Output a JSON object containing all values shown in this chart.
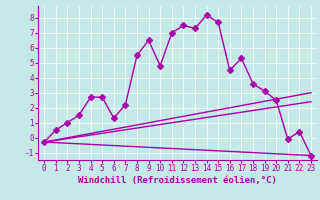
{
  "title": "",
  "xlabel": "Windchill (Refroidissement éolien,°C)",
  "ylabel": "",
  "xlim": [
    -0.5,
    23.5
  ],
  "ylim": [
    -1.5,
    8.8
  ],
  "yticks": [
    -1,
    0,
    1,
    2,
    3,
    4,
    5,
    6,
    7,
    8
  ],
  "xticks": [
    0,
    1,
    2,
    3,
    4,
    5,
    6,
    7,
    8,
    9,
    10,
    11,
    12,
    13,
    14,
    15,
    16,
    17,
    18,
    19,
    20,
    21,
    22,
    23
  ],
  "background_color": "#c5e8e8",
  "line_color": "#aa00aa",
  "line1_x": [
    0,
    1,
    2,
    3,
    4,
    5,
    6,
    7,
    8,
    9,
    10,
    11,
    12,
    13,
    14,
    15,
    16,
    17,
    18,
    19,
    20,
    21,
    22,
    23
  ],
  "line1_y": [
    -0.3,
    0.5,
    1.0,
    1.5,
    2.7,
    2.7,
    1.3,
    2.2,
    5.5,
    6.5,
    4.8,
    7.0,
    7.5,
    7.3,
    8.2,
    7.7,
    4.5,
    5.3,
    3.6,
    3.1,
    2.5,
    -0.1,
    0.4,
    -1.2
  ],
  "line2_x": [
    0,
    23
  ],
  "line2_y": [
    -0.3,
    3.0
  ],
  "line3_x": [
    0,
    23
  ],
  "line3_y": [
    -0.3,
    2.4
  ],
  "line4_x": [
    0,
    23
  ],
  "line4_y": [
    -0.3,
    -1.2
  ],
  "markersize": 3,
  "linewidth": 1.0,
  "grid_color": "#ffffff",
  "xlabel_fontsize": 6.5,
  "tick_fontsize": 5.5,
  "font_family": "monospace"
}
